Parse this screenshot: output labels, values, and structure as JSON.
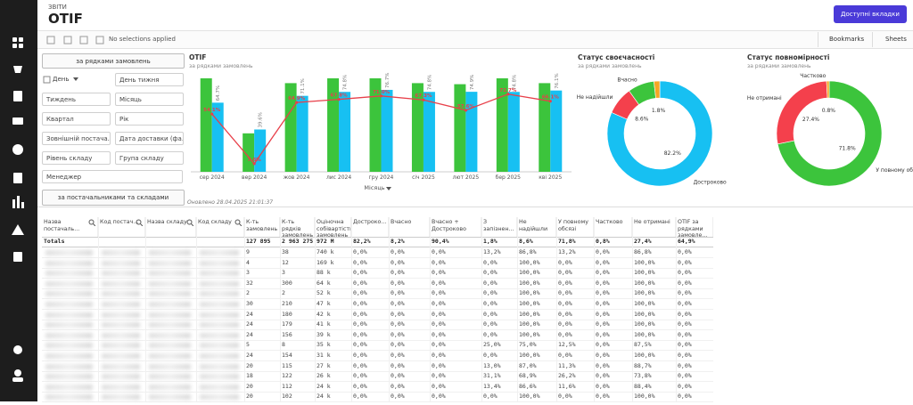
{
  "header": {
    "section": "ЗВІТИ",
    "title": "OTIF",
    "button": "Доступні вкладки"
  },
  "toolbar": {
    "selections": "No selections applied",
    "bookmarks": "Bookmarks",
    "sheets": "Sheets"
  },
  "filters": {
    "top_button": "за рядками замовлень",
    "items": [
      "День",
      "День тижня",
      "Тиждень",
      "Місяць",
      "Квартал",
      "Рік",
      "Зовнішній постача...",
      "Дата доставки (фа...",
      "Рівень складу",
      "Група складу",
      "Менеджер"
    ],
    "bottom_button": "за постачальниками та складами"
  },
  "updated": "Оновлено 28.04.2025 21:01:37",
  "chart_data": [
    {
      "type": "bar",
      "title": "OTIF",
      "subtitle": "за рядками замовлень",
      "x_label": "Місяць",
      "categories": [
        "сер 2024",
        "вер 2024",
        "жов 2024",
        "лис 2024",
        "гру 2024",
        "січ 2025",
        "лют 2025",
        "бер 2025",
        "кві 2025"
      ],
      "ylim": [
        0,
        100
      ],
      "series": [
        {
          "color": "#3cc43c",
          "values": [
            87.5,
            36,
            83,
            87.5,
            87.5,
            83,
            82,
            87.5,
            83
          ]
        },
        {
          "color": "#17c0f2",
          "values": [
            64.7,
            39.6,
            71.1,
            74.8,
            76.7,
            74.8,
            74.9,
            74.8,
            76.1
          ],
          "value_labels": [
            "64.7%",
            "39.6%",
            "71.1%",
            "74.8%",
            "76.7%",
            "74.8%",
            "74.9%",
            "74.8%",
            "76.1%"
          ]
        },
        {
          "type": "line",
          "color": "#e8404a",
          "values": [
            54.1,
            7.6,
            64.9,
            67.8,
            71.0,
            67.3,
            57.6,
            72.7,
            66.1
          ],
          "value_labels": [
            "54.1%",
            "7.6%",
            "64.9%",
            "67.8%",
            "71.0%",
            "67.3%",
            "57.6%",
            "72.7%",
            "66.1%"
          ]
        }
      ]
    },
    {
      "type": "pie",
      "donut": true,
      "title": "Статус своєчасності",
      "subtitle": "за рядками замовлень",
      "categories": [
        "Достроково",
        "Не надійшли",
        "Вчасно",
        null
      ],
      "values": [
        82.2,
        8.6,
        8.2,
        1.8
      ],
      "value_labels": [
        "82.2%",
        "8.6%",
        null,
        "1.8%"
      ],
      "colors": [
        "#17c0f2",
        "#f4404c",
        "#3cc43c",
        "#f5a623"
      ]
    },
    {
      "type": "pie",
      "donut": true,
      "title": "Статус повномірності",
      "subtitle": "за рядками замовлень",
      "categories": [
        "У повному обсязі",
        "Не отримані",
        "Частково"
      ],
      "values": [
        71.8,
        27.4,
        0.8
      ],
      "value_labels": [
        "71.8%",
        "27.4%",
        "0.8%"
      ],
      "colors": [
        "#3cc43c",
        "#f4404c",
        "#f5a623"
      ]
    }
  ],
  "table": {
    "headers": [
      "Назва постачаль...",
      "Код постач...",
      "Назва складу",
      "Код складу",
      "К-ть замовлень",
      "К-ть рядків замовлень",
      "Оціночна собівартість замовлень",
      "Достроко...",
      "Вчасно",
      "Вчасно + Достроково",
      "З запізнен...",
      "Не надійшли",
      "У повному обсязі",
      "Частково",
      "Не отримані",
      "OTIF за рядками замовле..."
    ],
    "totals_label": "Totals",
    "totals": [
      "127 895",
      "2 963 275",
      "972 M",
      "82,2%",
      "8,2%",
      "90,4%",
      "1,8%",
      "8,6%",
      "71,8%",
      "0,8%",
      "27,4%",
      "64,9%"
    ],
    "rows": [
      [
        "9",
        "38",
        "740 k",
        "0,0%",
        "0,0%",
        "0,0%",
        "13,2%",
        "86,8%",
        "13,2%",
        "0,0%",
        "86,8%",
        "0,0%"
      ],
      [
        "4",
        "12",
        "169 k",
        "0,0%",
        "0,0%",
        "0,0%",
        "0,0%",
        "100,0%",
        "0,0%",
        "0,0%",
        "100,0%",
        "0,0%"
      ],
      [
        "3",
        "3",
        "88 k",
        "0,0%",
        "0,0%",
        "0,0%",
        "0,0%",
        "100,0%",
        "0,0%",
        "0,0%",
        "100,0%",
        "0,0%"
      ],
      [
        "32",
        "300",
        "64 k",
        "0,0%",
        "0,0%",
        "0,0%",
        "0,0%",
        "100,0%",
        "0,0%",
        "0,0%",
        "100,0%",
        "0,0%"
      ],
      [
        "2",
        "2",
        "52 k",
        "0,0%",
        "0,0%",
        "0,0%",
        "0,0%",
        "100,0%",
        "0,0%",
        "0,0%",
        "100,0%",
        "0,0%"
      ],
      [
        "30",
        "210",
        "47 k",
        "0,0%",
        "0,0%",
        "0,0%",
        "0,0%",
        "100,0%",
        "0,0%",
        "0,0%",
        "100,0%",
        "0,0%"
      ],
      [
        "24",
        "180",
        "42 k",
        "0,0%",
        "0,0%",
        "0,0%",
        "0,0%",
        "100,0%",
        "0,0%",
        "0,0%",
        "100,0%",
        "0,0%"
      ],
      [
        "24",
        "179",
        "41 k",
        "0,0%",
        "0,0%",
        "0,0%",
        "0,0%",
        "100,0%",
        "0,0%",
        "0,0%",
        "100,0%",
        "0,0%"
      ],
      [
        "24",
        "156",
        "39 k",
        "0,0%",
        "0,0%",
        "0,0%",
        "0,0%",
        "100,0%",
        "0,0%",
        "0,0%",
        "100,0%",
        "0,0%"
      ],
      [
        "5",
        "8",
        "35 k",
        "0,0%",
        "0,0%",
        "0,0%",
        "25,0%",
        "75,0%",
        "12,5%",
        "0,0%",
        "87,5%",
        "0,0%"
      ],
      [
        "24",
        "154",
        "31 k",
        "0,0%",
        "0,0%",
        "0,0%",
        "0,0%",
        "100,0%",
        "0,0%",
        "0,0%",
        "100,0%",
        "0,0%"
      ],
      [
        "20",
        "115",
        "27 k",
        "0,0%",
        "0,0%",
        "0,0%",
        "13,0%",
        "87,0%",
        "11,3%",
        "0,0%",
        "88,7%",
        "0,0%"
      ],
      [
        "18",
        "122",
        "26 k",
        "0,0%",
        "0,0%",
        "0,0%",
        "31,1%",
        "68,9%",
        "26,2%",
        "0,0%",
        "73,8%",
        "0,0%"
      ],
      [
        "20",
        "112",
        "24 k",
        "0,0%",
        "0,0%",
        "0,0%",
        "13,4%",
        "86,6%",
        "11,6%",
        "0,0%",
        "88,4%",
        "0,0%"
      ],
      [
        "20",
        "102",
        "24 k",
        "0,0%",
        "0,0%",
        "0,0%",
        "0,0%",
        "100,0%",
        "0,0%",
        "0,0%",
        "100,0%",
        "0,0%"
      ]
    ]
  }
}
